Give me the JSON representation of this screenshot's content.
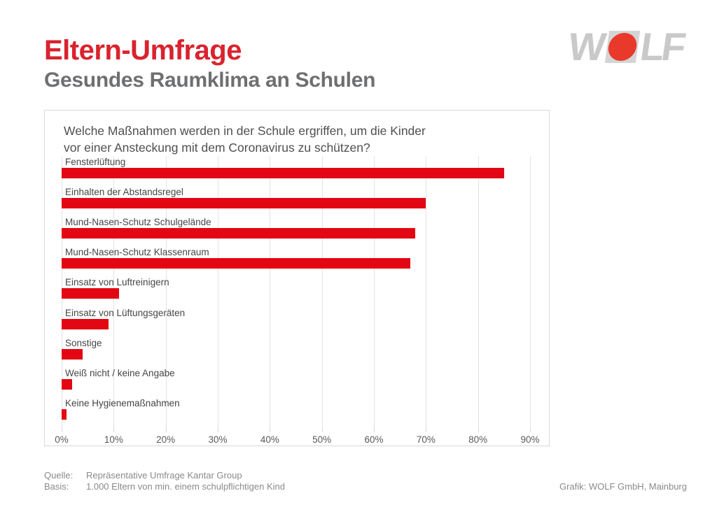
{
  "header": {
    "title": "Eltern-Umfrage",
    "subtitle": "Gesundes Raumklima an Schulen",
    "logo": {
      "name": "WOLF",
      "left_letters": "W",
      "right_letters": "LF"
    }
  },
  "chart": {
    "question_line1": "Welche Maßnahmen werden in der Schule ergriffen, um die Kinder",
    "question_line2": "vor einer Ansteckung mit dem Coronavirus zu schützen?"
  },
  "chart_data": {
    "type": "bar",
    "orientation": "horizontal",
    "categories": [
      "Fensterlüftung",
      "Einhalten der Abstandsregel",
      "Mund-Nasen-Schutz Schulgelände",
      "Mund-Nasen-Schutz Klassenraum",
      "Einsatz von Luftreinigern",
      "Einsatz von Lüftungsgeräten",
      "Sonstige",
      "Weiß nicht / keine Angabe",
      "Keine Hygienemaßnahmen"
    ],
    "values": [
      85,
      70,
      68,
      67,
      11,
      9,
      4,
      2,
      1
    ],
    "unit": "%",
    "xlim": [
      0,
      90
    ],
    "x_tick_step": 10,
    "x_tick_labels": [
      "0%",
      "10%",
      "20%",
      "30%",
      "40%",
      "50%",
      "60%",
      "70%",
      "80%",
      "90%"
    ],
    "grid": true,
    "legend": "none",
    "data_labels": "none"
  },
  "footer": {
    "source_label": "Quelle:",
    "source_value": "Repräsentative Umfrage Kantar Group",
    "basis_label": "Basis:",
    "basis_value": "1.000 Eltern von min. einem schulpflichtigen Kind",
    "credit": "Grafik: WOLF GmbH, Mainburg"
  },
  "colors": {
    "title_red": "#d9232e",
    "bar_red": "#e30613",
    "logo_red": "#e8392b",
    "logo_gray": "#c9c9ca",
    "subtitle_gray": "#6e6f71",
    "text_gray": "#4f4f4f",
    "axis_gray": "#595959",
    "footer_gray": "#8a8a8a"
  }
}
